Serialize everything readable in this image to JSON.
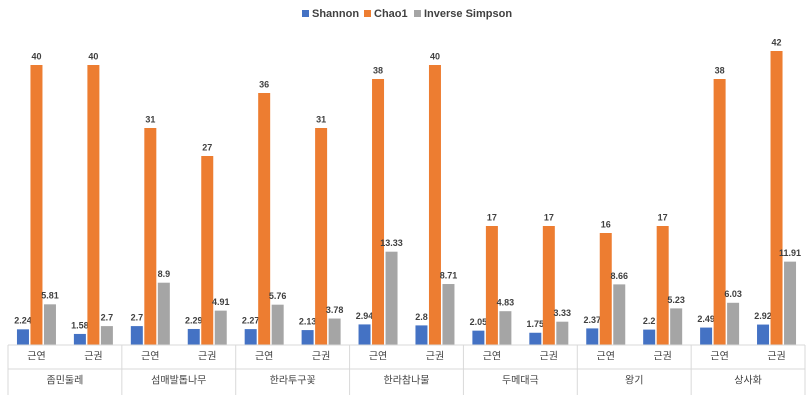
{
  "chart_data": {
    "type": "bar",
    "categories": [
      "근연",
      "근권",
      "근연",
      "근권",
      "근연",
      "근권",
      "근연",
      "근권",
      "근연",
      "근권",
      "근연",
      "근권",
      "근연",
      "근권"
    ],
    "groups": [
      "좀민둘레",
      "섬매발톱나무",
      "한라투구꽃",
      "한라참나물",
      "두메대극",
      "왕기",
      "상사화"
    ],
    "series": [
      {
        "name": "Shannon",
        "color": "#4472c4",
        "values": [
          2.24,
          1.58,
          2.7,
          2.29,
          2.27,
          2.13,
          2.94,
          2.8,
          2.05,
          1.75,
          2.37,
          2.2,
          2.49,
          2.92
        ]
      },
      {
        "name": "Chao1",
        "color": "#ed7d31",
        "values": [
          40,
          40,
          31,
          27,
          36,
          31,
          38,
          40,
          17,
          17,
          16,
          17,
          38,
          42
        ]
      },
      {
        "name": "Inverse Simpson",
        "color": "#a5a5a5",
        "values": [
          5.81,
          2.7,
          8.9,
          4.91,
          5.76,
          3.78,
          13.33,
          8.71,
          4.83,
          3.33,
          8.66,
          5.23,
          6.03,
          11.91
        ]
      }
    ],
    "ylim": [
      0,
      45
    ],
    "legend": "top"
  }
}
